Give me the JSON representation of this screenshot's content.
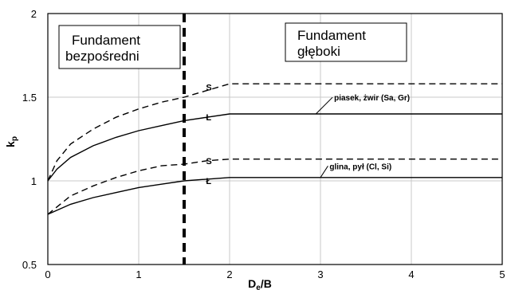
{
  "chart_data": {
    "type": "line",
    "xlabel": "D",
    "xlabel_sub": "e",
    "xlabel_suffix": "/B",
    "ylabel": "k",
    "ylabel_sub": "p",
    "xlim": [
      0,
      5
    ],
    "ylim": [
      0.5,
      2
    ],
    "xticks": [
      "0",
      "1",
      "2",
      "3",
      "4",
      "5"
    ],
    "yticks": [
      "0.5",
      "1",
      "1.5",
      "2"
    ],
    "grid": true,
    "boundary_x": 1.5,
    "regions": [
      {
        "line1": "Fundament",
        "line2": "bezpośredni"
      },
      {
        "line1": "Fundament",
        "line2": "głęboki"
      }
    ],
    "series": [
      {
        "marker": "S",
        "style": "dashed",
        "x": [
          0,
          0.1,
          0.25,
          0.5,
          0.75,
          1.0,
          1.25,
          1.5,
          1.75,
          2.0,
          5.0
        ],
        "y": [
          1.0,
          1.12,
          1.22,
          1.31,
          1.38,
          1.43,
          1.47,
          1.5,
          1.54,
          1.58,
          1.58
        ]
      },
      {
        "marker": "Ł",
        "style": "solid",
        "x": [
          0,
          0.1,
          0.25,
          0.5,
          0.75,
          1.0,
          1.25,
          1.5,
          1.75,
          2.0,
          5.0
        ],
        "y": [
          1.0,
          1.07,
          1.14,
          1.21,
          1.26,
          1.3,
          1.33,
          1.36,
          1.38,
          1.4,
          1.4
        ]
      },
      {
        "marker": "S",
        "style": "dashed",
        "x": [
          0,
          0.25,
          0.5,
          0.75,
          1.0,
          1.25,
          1.5,
          1.75,
          2.0,
          5.0
        ],
        "y": [
          0.8,
          0.91,
          0.97,
          1.02,
          1.06,
          1.09,
          1.1,
          1.12,
          1.13,
          1.13
        ]
      },
      {
        "marker": "Ł",
        "style": "solid",
        "x": [
          0,
          0.25,
          0.5,
          0.75,
          1.0,
          1.25,
          1.5,
          1.75,
          2.0,
          5.0
        ],
        "y": [
          0.8,
          0.86,
          0.9,
          0.93,
          0.96,
          0.98,
          1.0,
          1.01,
          1.02,
          1.02
        ]
      }
    ],
    "annotations": [
      {
        "text": "piasek, żwir (Sa, Gr)",
        "x": 3.15,
        "y": 1.48
      },
      {
        "text": "glina, pył (Cl, Si)",
        "x": 3.1,
        "y": 1.07
      }
    ]
  }
}
